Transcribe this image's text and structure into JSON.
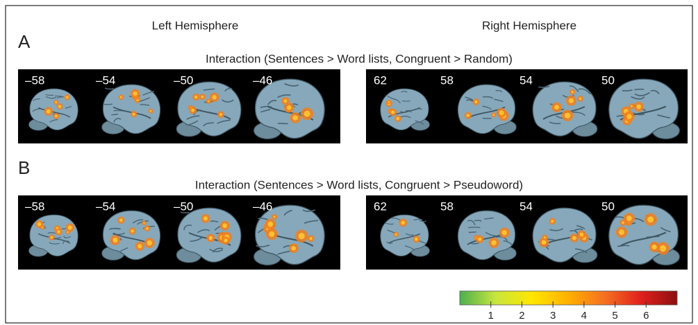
{
  "column_headers": [
    "Left Hemisphere",
    "Right Hemisphere"
  ],
  "panels": [
    {
      "label": "A",
      "title": "Interaction (Sentences > Word lists, Congruent > Random)",
      "left_slices": [
        "–58",
        "–54",
        "–50",
        "–46"
      ],
      "right_slices": [
        "62",
        "58",
        "54",
        "50"
      ]
    },
    {
      "label": "B",
      "title": "Interaction (Sentences > Word lists, Congruent > Pseudoword)",
      "left_slices": [
        "–58",
        "–54",
        "–50",
        "–46"
      ],
      "right_slices": [
        "62",
        "58",
        "54",
        "50"
      ]
    }
  ],
  "colorbar": {
    "range": [
      0,
      7
    ],
    "ticks": [
      1,
      2,
      3,
      4,
      5,
      6
    ],
    "colors": [
      "#4caf50",
      "#c8e63c",
      "#ffe600",
      "#ffb000",
      "#f57020",
      "#e0201c",
      "#8b1010"
    ]
  }
}
